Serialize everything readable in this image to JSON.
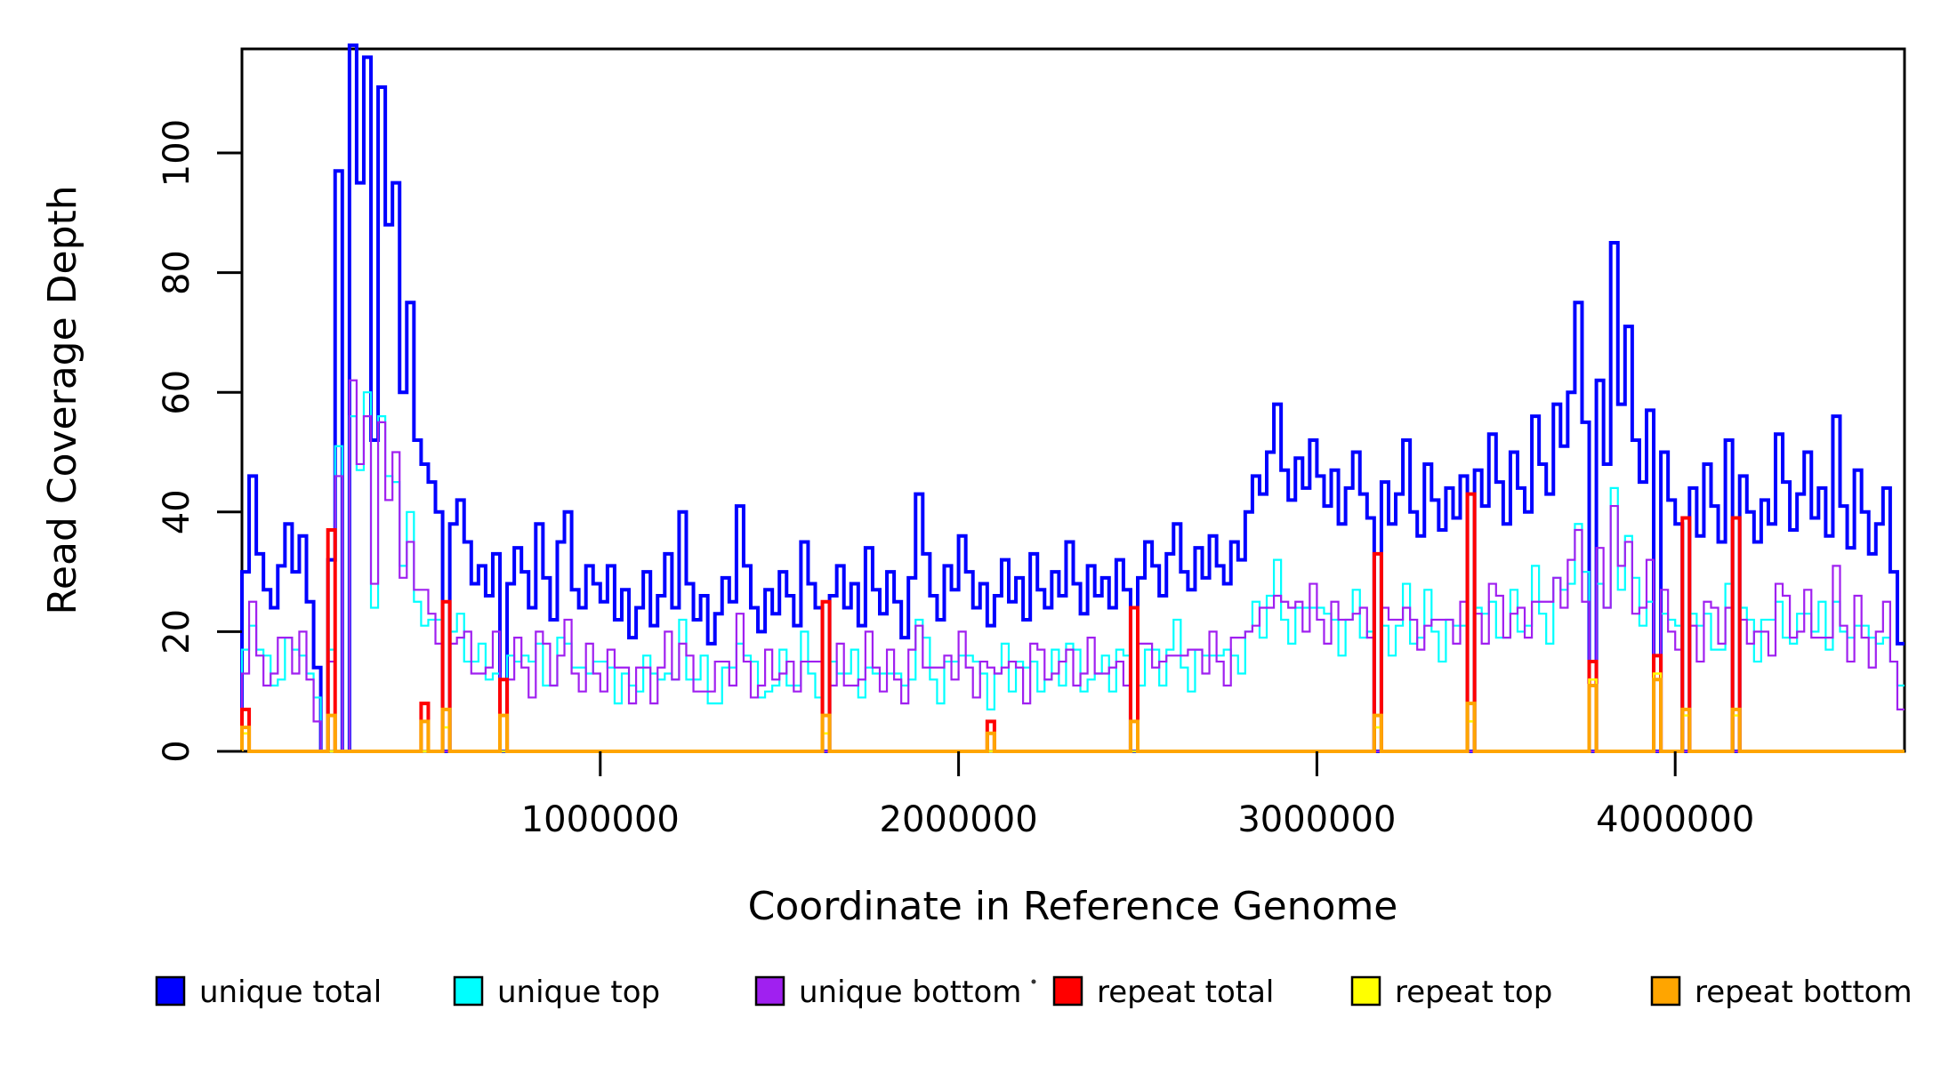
{
  "chart_data": {
    "type": "line",
    "subtype": "step",
    "title": "",
    "xlabel": "Coordinate in Reference Genome",
    "ylabel": "Read Coverage Depth",
    "xlim": [
      0,
      4640000
    ],
    "ylim": [
      0,
      117
    ],
    "grid": false,
    "legend_position": "bottom",
    "background_color": "#FFFFFF",
    "axis_color": "#000000",
    "bin_size": 20000,
    "n_bins": 232,
    "x_ticks": [
      {
        "value": 1000000,
        "label": "1000000"
      },
      {
        "value": 2000000,
        "label": "2000000"
      },
      {
        "value": 3000000,
        "label": "3000000"
      },
      {
        "value": 4000000,
        "label": "4000000"
      }
    ],
    "y_ticks": [
      {
        "value": 0,
        "label": "0"
      },
      {
        "value": 20,
        "label": "20"
      },
      {
        "value": 40,
        "label": "40"
      },
      {
        "value": 60,
        "label": "60"
      },
      {
        "value": 80,
        "label": "80"
      },
      {
        "value": 100,
        "label": "100"
      }
    ],
    "series": [
      {
        "name": "unique total",
        "color": "#0000FF",
        "stroke_width": 4,
        "values": [
          30,
          46,
          33,
          27,
          24,
          31,
          38,
          30,
          36,
          25,
          14,
          0,
          32,
          97,
          0,
          118,
          95,
          116,
          52,
          111,
          88,
          95,
          60,
          75,
          52,
          48,
          45,
          40,
          0,
          38,
          42,
          35,
          28,
          31,
          26,
          33,
          0,
          28,
          34,
          30,
          24,
          38,
          29,
          22,
          35,
          40,
          27,
          24,
          31,
          28,
          25,
          31,
          22,
          27,
          19,
          24,
          30,
          21,
          26,
          33,
          24,
          40,
          28,
          22,
          26,
          18,
          23,
          29,
          25,
          41,
          31,
          24,
          20,
          27,
          23,
          30,
          26,
          21,
          35,
          28,
          24,
          0,
          26,
          31,
          24,
          28,
          21,
          34,
          27,
          23,
          30,
          25,
          19,
          29,
          43,
          33,
          26,
          22,
          31,
          27,
          36,
          30,
          24,
          28,
          21,
          26,
          32,
          25,
          29,
          22,
          33,
          27,
          24,
          30,
          26,
          35,
          28,
          23,
          31,
          26,
          29,
          24,
          32,
          27,
          0,
          29,
          35,
          31,
          26,
          33,
          38,
          30,
          27,
          34,
          29,
          36,
          31,
          28,
          35,
          32,
          40,
          46,
          43,
          50,
          58,
          47,
          42,
          49,
          44,
          52,
          46,
          41,
          47,
          38,
          44,
          50,
          43,
          39,
          0,
          45,
          38,
          43,
          52,
          40,
          36,
          48,
          42,
          37,
          44,
          39,
          46,
          0,
          47,
          41,
          53,
          45,
          38,
          50,
          44,
          40,
          56,
          48,
          43,
          58,
          51,
          60,
          75,
          55,
          0,
          62,
          48,
          85,
          58,
          71,
          52,
          45,
          57,
          0,
          50,
          42,
          38,
          0,
          44,
          36,
          48,
          41,
          35,
          52,
          0,
          46,
          40,
          35,
          42,
          38,
          53,
          45,
          37,
          43,
          50,
          39,
          44,
          36,
          56,
          41,
          34,
          47,
          40,
          33,
          38,
          44,
          30,
          18
        ]
      },
      {
        "name": "unique top",
        "color": "#00FFFF",
        "stroke_width": 2.2,
        "values": [
          17,
          21,
          17,
          16,
          11,
          12,
          19,
          17,
          16,
          13,
          9,
          0,
          17,
          51,
          0,
          56,
          47,
          60,
          24,
          56,
          46,
          45,
          31,
          40,
          25,
          21,
          22,
          22,
          0,
          20,
          23,
          15,
          15,
          18,
          12,
          13,
          0,
          16,
          15,
          16,
          15,
          18,
          11,
          11,
          19,
          18,
          14,
          14,
          13,
          15,
          15,
          14,
          8,
          13,
          11,
          10,
          16,
          13,
          12,
          13,
          12,
          22,
          12,
          12,
          16,
          8,
          8,
          14,
          14,
          18,
          16,
          15,
          9,
          10,
          11,
          17,
          11,
          11,
          20,
          13,
          9,
          0,
          15,
          13,
          13,
          17,
          9,
          14,
          13,
          13,
          13,
          13,
          11,
          12,
          22,
          19,
          12,
          8,
          15,
          15,
          16,
          16,
          15,
          13,
          7,
          13,
          18,
          10,
          15,
          14,
          15,
          10,
          12,
          17,
          11,
          18,
          17,
          10,
          12,
          13,
          16,
          10,
          17,
          16,
          0,
          11,
          17,
          17,
          11,
          17,
          22,
          14,
          10,
          17,
          16,
          16,
          16,
          17,
          16,
          13,
          20,
          25,
          19,
          26,
          32,
          22,
          18,
          24,
          24,
          24,
          24,
          23,
          22,
          16,
          22,
          27,
          19,
          20,
          0,
          21,
          16,
          21,
          28,
          18,
          19,
          27,
          20,
          15,
          22,
          21,
          21,
          0,
          24,
          23,
          25,
          19,
          19,
          27,
          20,
          21,
          31,
          23,
          18,
          29,
          27,
          28,
          38,
          30,
          0,
          28,
          24,
          44,
          27,
          36,
          29,
          21,
          25,
          0,
          23,
          22,
          21,
          0,
          23,
          21,
          23,
          17,
          17,
          28,
          0,
          24,
          22,
          15,
          22,
          22,
          25,
          19,
          18,
          23,
          23,
          20,
          25,
          17,
          25,
          20,
          19,
          21,
          21,
          19,
          18,
          19,
          15,
          11
        ]
      },
      {
        "name": "unique bottom",
        "color": "#A020F0",
        "stroke_width": 2.2,
        "values": [
          13,
          25,
          16,
          11,
          13,
          19,
          19,
          13,
          20,
          12,
          5,
          0,
          15,
          46,
          0,
          62,
          48,
          56,
          28,
          55,
          42,
          50,
          29,
          35,
          27,
          27,
          23,
          18,
          0,
          18,
          19,
          20,
          13,
          13,
          14,
          20,
          0,
          12,
          19,
          14,
          9,
          20,
          18,
          11,
          16,
          22,
          13,
          10,
          18,
          13,
          10,
          17,
          14,
          14,
          8,
          14,
          14,
          8,
          14,
          20,
          12,
          18,
          16,
          10,
          10,
          10,
          15,
          15,
          11,
          23,
          15,
          9,
          11,
          17,
          12,
          13,
          15,
          10,
          15,
          15,
          15,
          0,
          11,
          18,
          11,
          11,
          12,
          20,
          14,
          10,
          17,
          12,
          8,
          17,
          21,
          14,
          14,
          14,
          16,
          12,
          20,
          14,
          9,
          15,
          14,
          13,
          14,
          15,
          14,
          8,
          18,
          17,
          12,
          13,
          15,
          17,
          11,
          13,
          19,
          13,
          13,
          14,
          15,
          11,
          0,
          18,
          18,
          14,
          15,
          16,
          16,
          16,
          17,
          17,
          13,
          20,
          15,
          11,
          19,
          19,
          20,
          21,
          24,
          24,
          26,
          25,
          24,
          25,
          20,
          28,
          22,
          18,
          25,
          22,
          22,
          23,
          24,
          19,
          0,
          24,
          22,
          22,
          24,
          22,
          17,
          21,
          22,
          22,
          22,
          18,
          25,
          0,
          23,
          18,
          28,
          26,
          19,
          23,
          24,
          19,
          25,
          25,
          25,
          29,
          24,
          32,
          37,
          25,
          0,
          34,
          24,
          41,
          31,
          35,
          23,
          24,
          32,
          0,
          27,
          20,
          17,
          0,
          21,
          15,
          25,
          24,
          18,
          24,
          0,
          22,
          18,
          20,
          20,
          16,
          28,
          26,
          19,
          20,
          27,
          19,
          19,
          19,
          31,
          21,
          15,
          26,
          19,
          14,
          20,
          25,
          15,
          7
        ]
      },
      {
        "name": "repeat total",
        "color": "#FF0000",
        "stroke_width": 4,
        "base": 0,
        "spikes": [
          [
            0,
            7
          ],
          [
            12,
            37
          ],
          [
            25,
            8
          ],
          [
            28,
            25
          ],
          [
            36,
            12
          ],
          [
            81,
            25
          ],
          [
            104,
            5
          ],
          [
            124,
            24
          ],
          [
            158,
            33
          ],
          [
            171,
            43
          ],
          [
            188,
            15
          ],
          [
            197,
            16
          ],
          [
            201,
            39
          ],
          [
            208,
            39
          ]
        ]
      },
      {
        "name": "repeat top",
        "color": "#FFFF00",
        "stroke_width": 2.6,
        "base": 0,
        "spikes": [
          [
            0,
            3
          ],
          [
            28,
            4
          ],
          [
            81,
            3
          ],
          [
            158,
            4
          ],
          [
            171,
            5
          ],
          [
            188,
            12
          ],
          [
            197,
            13
          ],
          [
            201,
            6
          ],
          [
            208,
            6
          ]
        ]
      },
      {
        "name": "repeat bottom",
        "color": "#FFA500",
        "stroke_width": 4,
        "base": 0,
        "spikes": [
          [
            0,
            4
          ],
          [
            12,
            6
          ],
          [
            25,
            5
          ],
          [
            28,
            7
          ],
          [
            36,
            6
          ],
          [
            81,
            6
          ],
          [
            104,
            3
          ],
          [
            124,
            5
          ],
          [
            158,
            6
          ],
          [
            171,
            8
          ],
          [
            188,
            11
          ],
          [
            197,
            12
          ],
          [
            201,
            7
          ],
          [
            208,
            7
          ]
        ]
      }
    ],
    "legend": {
      "items": [
        {
          "label": "unique total",
          "color": "#0000FF"
        },
        {
          "label": "unique top",
          "color": "#00FFFF"
        },
        {
          "label": "unique bottom",
          "color": "#A020F0"
        },
        {
          "label": "repeat total",
          "color": "#FF0000"
        },
        {
          "label": "repeat top",
          "color": "#FFFF00"
        },
        {
          "label": "repeat bottom",
          "color": "#FFA500"
        }
      ]
    }
  }
}
